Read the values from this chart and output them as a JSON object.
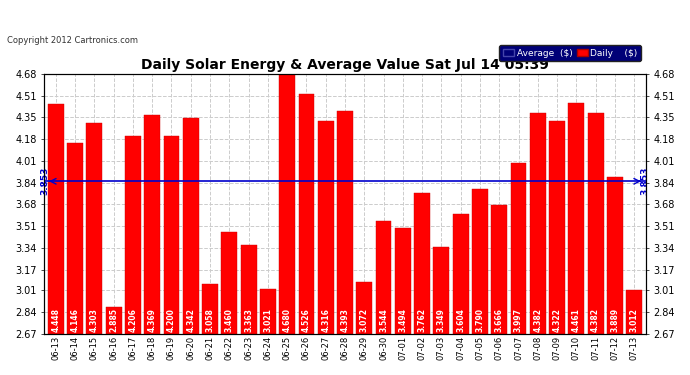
{
  "title": "Daily Solar Energy & Average Value Sat Jul 14 05:39",
  "copyright": "Copyright 2012 Cartronics.com",
  "average_value": 3.853,
  "bar_color": "#FF0000",
  "average_line_color": "#0000CC",
  "background_color": "#FFFFFF",
  "plot_bg_color": "#FFFFFF",
  "grid_color": "#CCCCCC",
  "categories": [
    "06-13",
    "06-14",
    "06-15",
    "06-16",
    "06-17",
    "06-18",
    "06-19",
    "06-20",
    "06-21",
    "06-22",
    "06-23",
    "06-24",
    "06-25",
    "06-26",
    "06-27",
    "06-28",
    "06-29",
    "06-30",
    "07-01",
    "07-02",
    "07-03",
    "07-04",
    "07-05",
    "07-06",
    "07-07",
    "07-08",
    "07-09",
    "07-10",
    "07-11",
    "07-12",
    "07-13"
  ],
  "values": [
    4.448,
    4.146,
    4.303,
    2.885,
    4.206,
    4.369,
    4.2,
    4.342,
    3.058,
    3.46,
    3.363,
    3.021,
    4.68,
    4.526,
    4.316,
    4.393,
    3.072,
    3.544,
    3.494,
    3.762,
    3.349,
    3.604,
    3.79,
    3.666,
    3.997,
    4.382,
    4.322,
    4.461,
    4.382,
    3.889,
    3.012
  ],
  "ylim_min": 2.67,
  "ylim_max": 4.68,
  "yticks": [
    2.67,
    2.84,
    3.01,
    3.17,
    3.34,
    3.51,
    3.68,
    3.84,
    4.01,
    4.18,
    4.35,
    4.51,
    4.68
  ],
  "bar_text_color": "#FFFFFF",
  "bar_text_fontsize": 5.5,
  "avg_label": "3.853",
  "legend_bg_color": "#000077",
  "legend_text_color": "#FFFFFF",
  "legend_avg_color": "#000077",
  "legend_daily_color": "#FF0000"
}
